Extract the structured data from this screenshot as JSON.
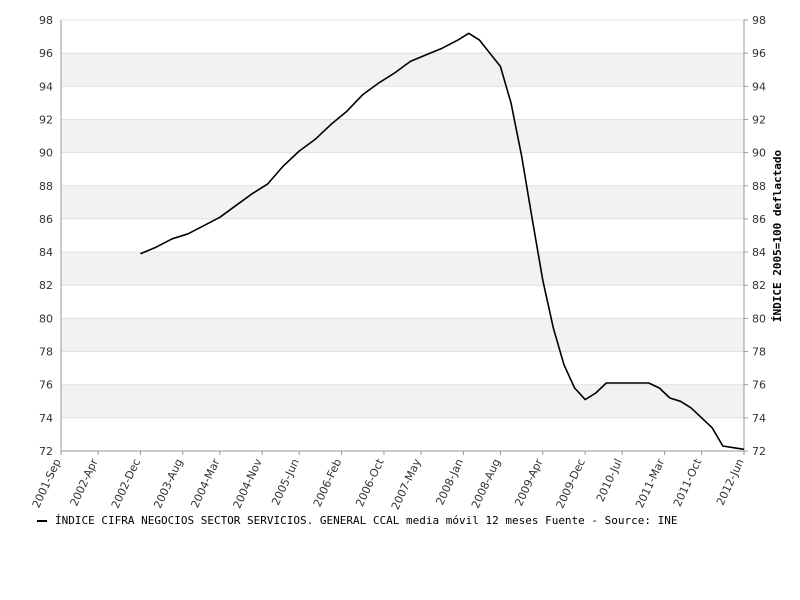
{
  "chart_data": {
    "type": "line",
    "title": "",
    "xlabel": "",
    "ylabel": "ÍNDICE 2005=100 deflactado",
    "ylim": [
      72,
      98
    ],
    "yticks": [
      72,
      74,
      76,
      78,
      80,
      82,
      84,
      86,
      88,
      90,
      92,
      94,
      96,
      98
    ],
    "xlim": [
      "2001-09",
      "2012-06"
    ],
    "xtick_labels": [
      "2001-Sep",
      "2002-Apr",
      "2002-Dec",
      "2003-Aug",
      "2004-Mar",
      "2004-Nov",
      "2005-Jun",
      "2006-Feb",
      "2006-Oct",
      "2007-May",
      "2008-Jan",
      "2008-Aug",
      "2009-Apr",
      "2009-Dec",
      "2010-Jul",
      "2011-Mar",
      "2011-Oct",
      "2012-Jun"
    ],
    "xtick_dates": [
      "2001-09",
      "2002-04",
      "2002-12",
      "2003-08",
      "2004-03",
      "2004-11",
      "2005-06",
      "2006-02",
      "2006-10",
      "2007-05",
      "2008-01",
      "2008-08",
      "2009-04",
      "2009-12",
      "2010-07",
      "2011-03",
      "2011-10",
      "2012-06"
    ],
    "grid": "horizontal bands",
    "legend_position": "bottom-left",
    "colors": {
      "line": "#000000",
      "band": "#f2f2f2",
      "axis": "#999999"
    },
    "series": [
      {
        "name": "ÍNDICE CIFRA NEGOCIOS SECTOR SERVICIOS. GENERAL CCAL media móvil 12 meses",
        "x": [
          "2002-12",
          "2003-03",
          "2003-06",
          "2003-09",
          "2003-12",
          "2004-03",
          "2004-06",
          "2004-09",
          "2004-12",
          "2005-03",
          "2005-06",
          "2005-09",
          "2005-12",
          "2006-03",
          "2006-06",
          "2006-09",
          "2006-12",
          "2007-03",
          "2007-06",
          "2007-09",
          "2007-12",
          "2008-02",
          "2008-04",
          "2008-06",
          "2008-08",
          "2008-10",
          "2008-12",
          "2009-02",
          "2009-04",
          "2009-06",
          "2009-08",
          "2009-10",
          "2009-12",
          "2010-02",
          "2010-04",
          "2010-06",
          "2010-08",
          "2010-10",
          "2010-12",
          "2011-02",
          "2011-04",
          "2011-06",
          "2011-08",
          "2011-10",
          "2011-12",
          "2012-02",
          "2012-04",
          "2012-06"
        ],
        "values": [
          83.9,
          84.3,
          84.8,
          85.1,
          85.6,
          86.1,
          86.8,
          87.5,
          88.1,
          89.2,
          90.1,
          90.8,
          91.7,
          92.5,
          93.5,
          94.2,
          94.8,
          95.5,
          95.9,
          96.3,
          96.8,
          97.2,
          96.8,
          96.0,
          95.2,
          93.0,
          89.8,
          86.0,
          82.3,
          79.4,
          77.2,
          75.8,
          75.1,
          75.5,
          76.1,
          76.1,
          76.1,
          76.1,
          76.1,
          75.8,
          75.2,
          75.0,
          74.6,
          74.0,
          73.4,
          72.3,
          72.2,
          72.1
        ]
      }
    ]
  },
  "legend": {
    "text": "ÍNDICE CIFRA NEGOCIOS SECTOR SERVICIOS. GENERAL CCAL media móvil 12 meses  Fuente - Source: INE"
  }
}
